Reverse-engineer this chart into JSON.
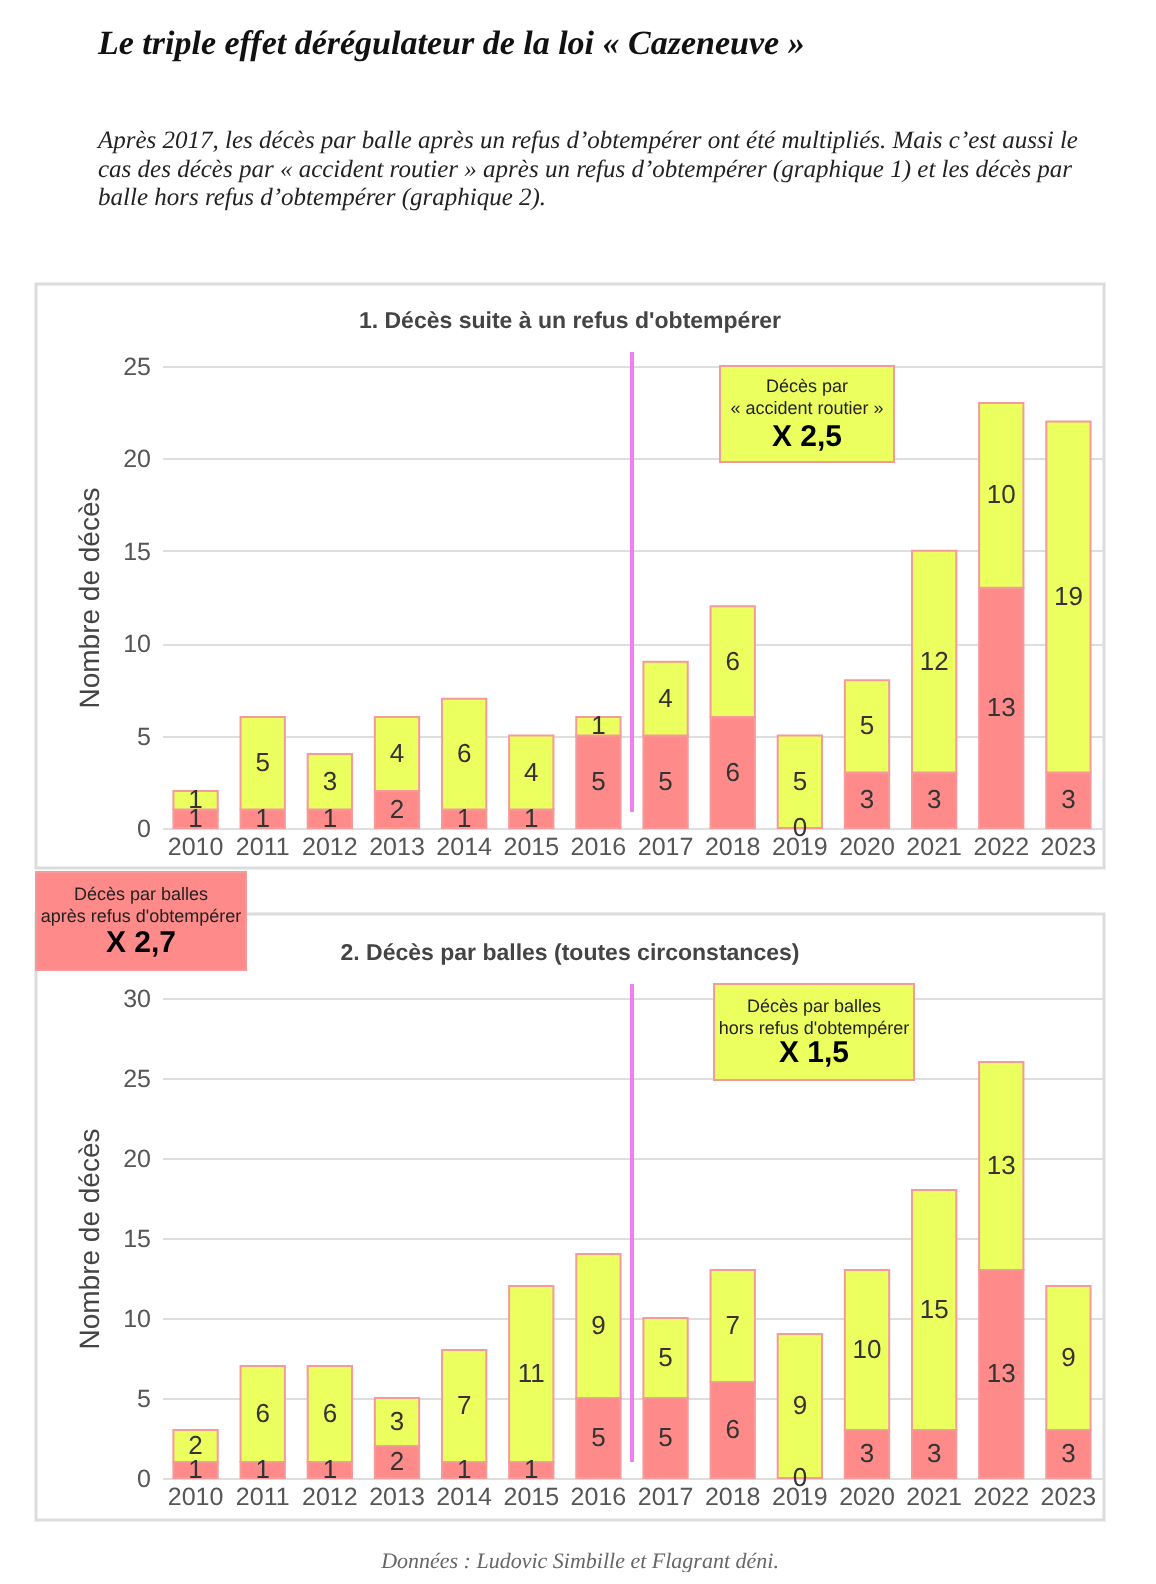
{
  "chart_data": [
    {
      "type": "other",
      "title": "Le triple effet dérégulateur de la loi « Cazeneuve »",
      "subtitle": "Après 2017, les décès par balle après un refus d’obtempérer ont été multipliés. Mais c’est aussi le cas des décès par « accident routier » après un refus d’obtempérer (graphique 1) et les décès par balle hors refus d’obtempérer (graphique 2)."
    },
    {
      "type": "bar",
      "title": "1. Décès suite à un refus d'obtempérer",
      "ylabel": "Nombre de décès",
      "categories": [
        "2010",
        "2011",
        "2012",
        "2013",
        "2014",
        "2015",
        "2016",
        "2017",
        "2018",
        "2019",
        "2020",
        "2021",
        "2022",
        "2023"
      ],
      "series": [
        {
          "color": "#ff8a8a",
          "values": [
            1,
            1,
            1,
            2,
            1,
            1,
            5,
            5,
            6,
            0,
            3,
            3,
            13,
            3
          ]
        },
        {
          "color": "#ebff5e",
          "values": [
            1,
            5,
            3,
            4,
            6,
            4,
            1,
            4,
            6,
            5,
            5,
            12,
            10,
            19
          ]
        }
      ],
      "stacked": true,
      "data_labels": true,
      "ylim": [
        0,
        25
      ],
      "yticks": [
        0,
        5,
        10,
        15,
        20,
        25
      ],
      "grid": "y",
      "ref_lines": [
        {
          "axis": "x",
          "value": "2017",
          "color": "#f27ff2"
        }
      ],
      "annotations": [
        "Décès par\n« accident routier »\nX 2,5"
      ]
    },
    {
      "type": "bar",
      "title": "2. Décès par balles (toutes circonstances)",
      "ylabel": "Nombre de décès",
      "categories": [
        "2010",
        "2011",
        "2012",
        "2013",
        "2014",
        "2015",
        "2016",
        "2017",
        "2018",
        "2019",
        "2020",
        "2021",
        "2022",
        "2023"
      ],
      "series": [
        {
          "color": "#ff8a8a",
          "values": [
            1,
            1,
            1,
            2,
            1,
            1,
            5,
            5,
            6,
            0,
            3,
            3,
            13,
            3
          ]
        },
        {
          "color": "#ebff5e",
          "values": [
            2,
            6,
            6,
            3,
            7,
            11,
            9,
            5,
            7,
            9,
            10,
            15,
            13,
            9
          ]
        }
      ],
      "stacked": true,
      "data_labels": true,
      "ylim": [
        0,
        30
      ],
      "yticks": [
        0,
        5,
        10,
        15,
        20,
        25,
        30
      ],
      "grid": "y",
      "ref_lines": [
        {
          "axis": "x",
          "value": "2017",
          "color": "#f27ff2"
        }
      ],
      "annotations": [
        "Décès par balles\naprès refus d'obtempérer\nX 2,7",
        "Décès par balles\nhors refus d'obtempérer\nX 1,5",
        "Données : Ludovic Simbille et Flagrant déni."
      ]
    }
  ]
}
